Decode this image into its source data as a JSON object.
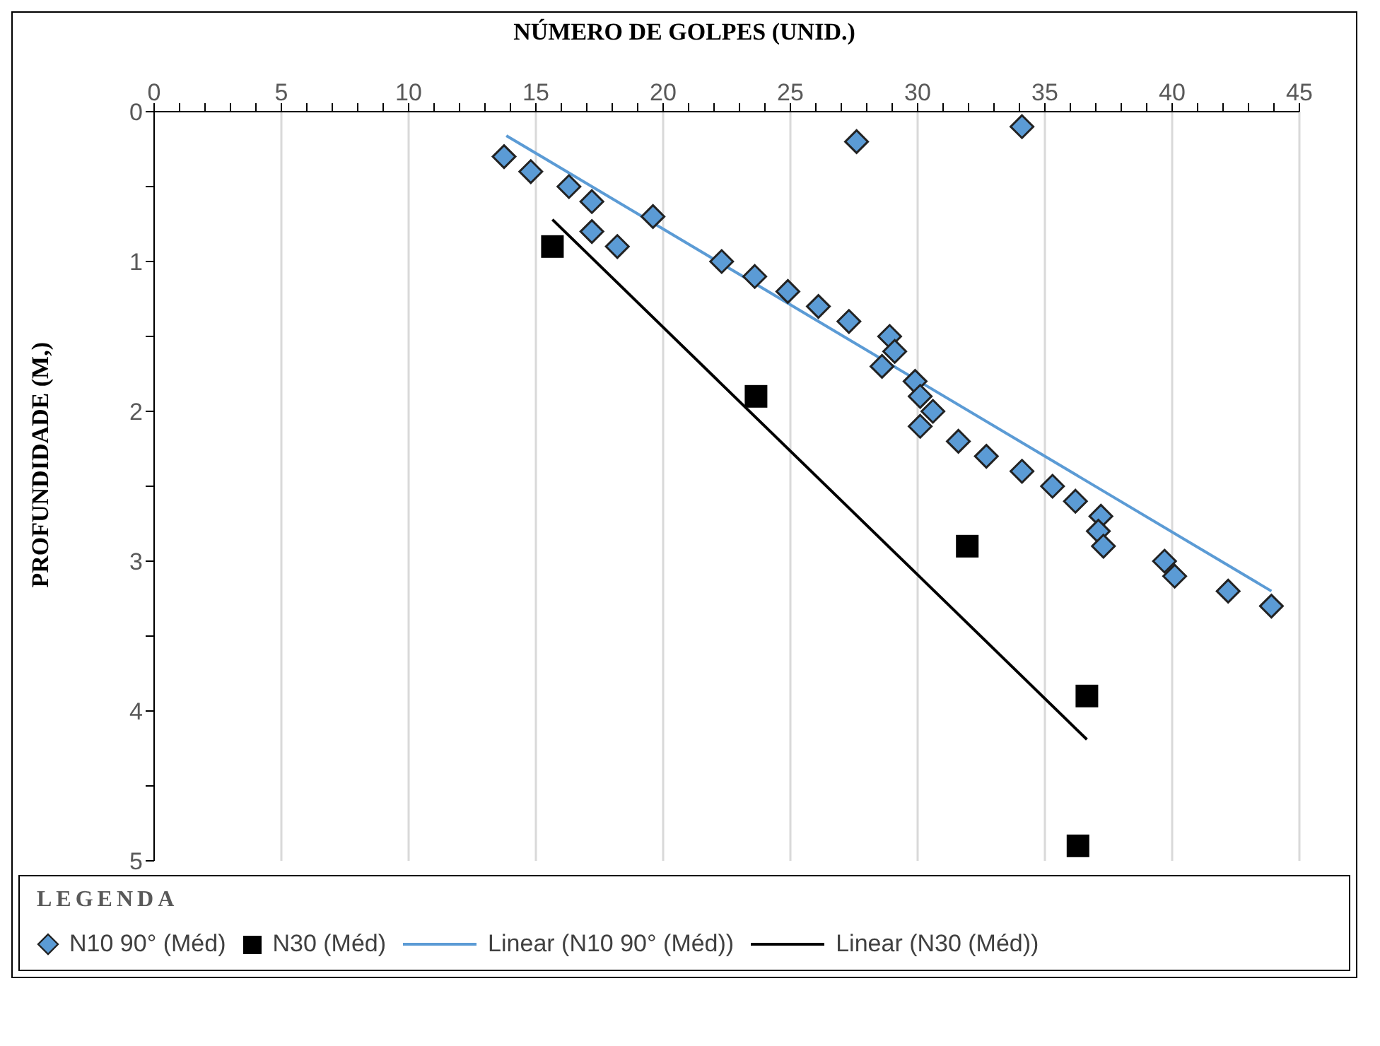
{
  "chart_data": {
    "type": "scatter",
    "xlabel": "NÚMERO DE GOLPES (UNID.)",
    "ylabel": "PROFUNDIDADE (M,)",
    "legend_title": "LEGENDA",
    "legend": "bottom",
    "grid": "x",
    "xlim": [
      0,
      45
    ],
    "ylim": [
      5,
      0
    ],
    "xticks": [
      0,
      {
        "value": 1,
        "label": null
      },
      {
        "value": 2,
        "label": null
      },
      {
        "value": 3,
        "label": null
      },
      {
        "value": 4,
        "label": null
      },
      5,
      {
        "value": 6,
        "label": null
      },
      {
        "value": 7,
        "label": null
      },
      {
        "value": 8,
        "label": null
      },
      {
        "value": 9,
        "label": null
      },
      10,
      {
        "value": 11,
        "label": null
      },
      {
        "value": 12,
        "label": null
      },
      {
        "value": 13,
        "label": null
      },
      {
        "value": 14,
        "label": null
      },
      15,
      {
        "value": 16,
        "label": null
      },
      {
        "value": 17,
        "label": null
      },
      {
        "value": 18,
        "label": null
      },
      {
        "value": 19,
        "label": null
      },
      20,
      {
        "value": 21,
        "label": null
      },
      {
        "value": 22,
        "label": null
      },
      {
        "value": 23,
        "label": null
      },
      {
        "value": 24,
        "label": null
      },
      25,
      {
        "value": 26,
        "label": null
      },
      {
        "value": 27,
        "label": null
      },
      {
        "value": 28,
        "label": null
      },
      {
        "value": 29,
        "label": null
      },
      30,
      {
        "value": 31,
        "label": null
      },
      {
        "value": 32,
        "label": null
      },
      {
        "value": 33,
        "label": null
      },
      {
        "value": 34,
        "label": null
      },
      35,
      {
        "value": 36,
        "label": null
      },
      {
        "value": 37,
        "label": null
      },
      {
        "value": 38,
        "label": null
      },
      {
        "value": 39,
        "label": null
      },
      40,
      {
        "value": 41,
        "label": null
      },
      {
        "value": 42,
        "label": null
      },
      {
        "value": 43,
        "label": null
      },
      {
        "value": 44,
        "label": null
      },
      45
    ],
    "yticks": [
      0,
      {
        "value": 0.5,
        "label": null
      },
      1,
      {
        "value": 1.5,
        "label": null
      },
      2,
      {
        "value": 2.5,
        "label": null
      },
      3,
      {
        "value": 3.5,
        "label": null
      },
      4,
      {
        "value": 4.5,
        "label": null
      },
      5
    ],
    "series": [
      {
        "name": "N10 90° (Méd)",
        "marker": "diamond",
        "color": "#5b9bd5",
        "x": [
          34.1,
          27.6,
          13.75,
          14.8,
          16.3,
          17.2,
          19.6,
          17.2,
          18.2,
          22.3,
          23.6,
          24.9,
          26.1,
          27.3,
          28.9,
          29.1,
          28.6,
          29.9,
          30.1,
          30.6,
          30.1,
          31.6,
          32.7,
          34.1,
          35.3,
          36.2,
          37.2,
          37.1,
          37.3,
          39.7,
          40.1,
          42.2,
          43.9
        ],
        "values": [
          0.1,
          0.2,
          0.3,
          0.4,
          0.5,
          0.6,
          0.7,
          0.8,
          0.9,
          1.0,
          1.1,
          1.2,
          1.3,
          1.4,
          1.5,
          1.6,
          1.7,
          1.8,
          1.9,
          2.0,
          2.1,
          2.2,
          2.3,
          2.4,
          2.5,
          2.6,
          2.7,
          2.8,
          2.9,
          3.0,
          3.1,
          3.2,
          3.3
        ]
      },
      {
        "name": "N30 (Méd)",
        "marker": "square",
        "color": "#000000",
        "x": [
          15.65,
          23.65,
          31.95,
          36.65,
          36.3
        ],
        "values": [
          0.9,
          1.9,
          2.9,
          3.9,
          4.9
        ]
      },
      {
        "name": "Linear (N10 90° (Méd))",
        "type": "line",
        "marker": "none",
        "line_style": "solid",
        "color": "#5b9bd5",
        "x": [
          13.84,
          43.9
        ],
        "values": [
          0.16,
          3.2
        ]
      },
      {
        "name": "Linear (N30 (Méd))",
        "type": "line",
        "marker": "none",
        "line_style": "solid",
        "color": "#000000",
        "x": [
          15.65,
          36.65
        ],
        "values": [
          0.72,
          4.19
        ]
      }
    ]
  }
}
